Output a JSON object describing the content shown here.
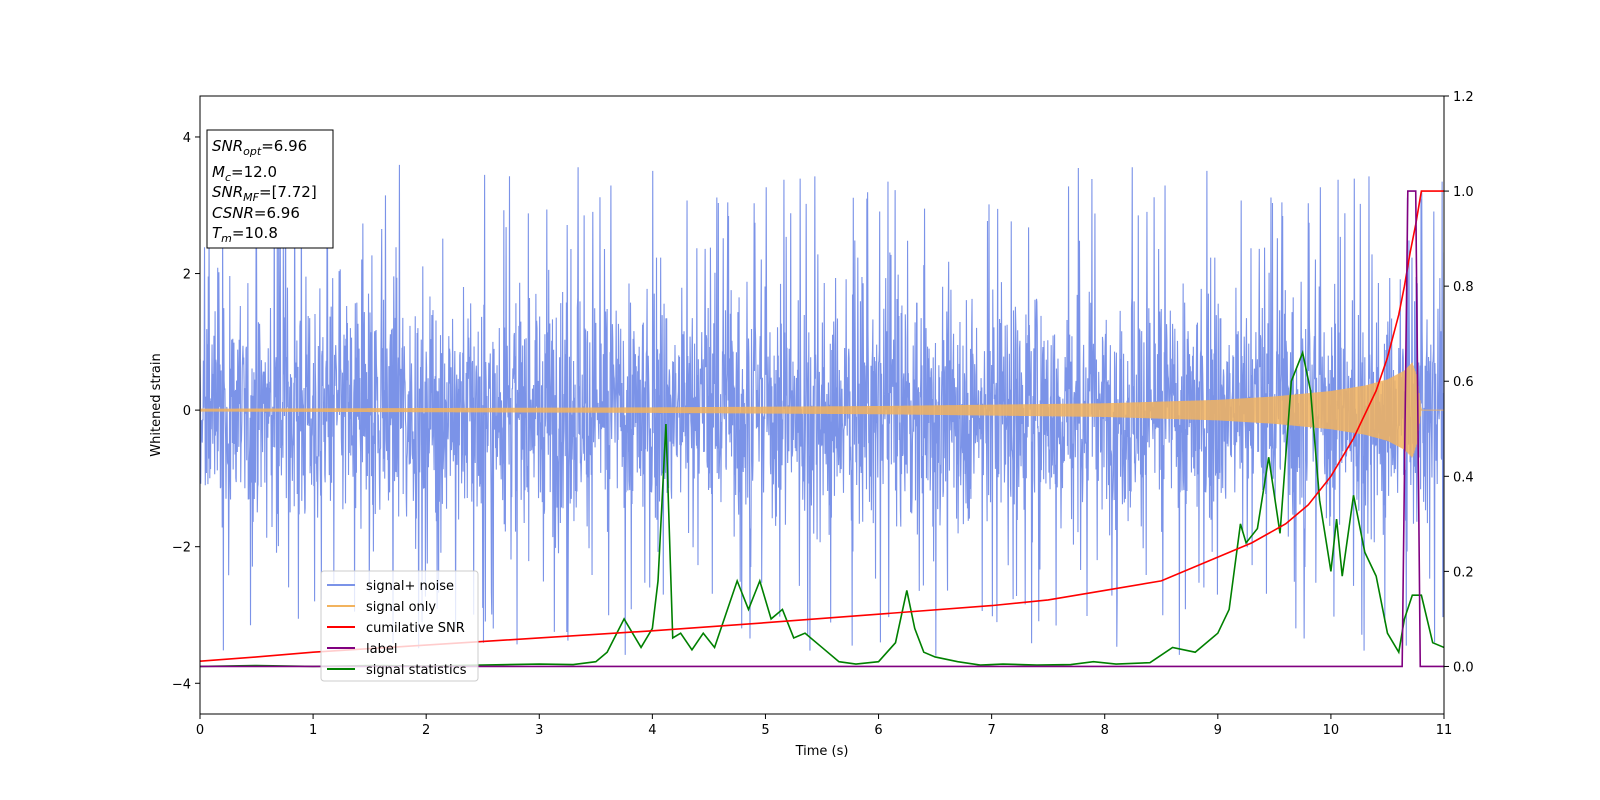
{
  "chart_data": {
    "type": "line",
    "title": "",
    "xlabel": "Time (s)",
    "ylabel": "Whitened strain",
    "xlim": [
      0,
      11
    ],
    "ylim": [
      -4.45,
      4.6
    ],
    "y2lim": [
      -0.1,
      1.2
    ],
    "x_ticks": [
      "0",
      "1",
      "2",
      "3",
      "4",
      "5",
      "6",
      "7",
      "8",
      "9",
      "10",
      "11"
    ],
    "y_ticks": [
      "−4",
      "−2",
      "0",
      "2",
      "4"
    ],
    "y2_ticks": [
      "0.0",
      "0.2",
      "0.4",
      "0.6",
      "0.8",
      "1.0",
      "1.2"
    ],
    "grid": false,
    "legend_position": "lower-left",
    "annotation": {
      "lines": [
        {
          "base": "SNR",
          "sub": "opt",
          "rest": "=6.96"
        },
        {
          "base": "M",
          "sub": "c",
          "rest": "=12.0"
        },
        {
          "base": "SNR",
          "sub": "MF",
          "rest": "=[7.72]"
        },
        {
          "base": "CSNR",
          "sub": "",
          "rest": "=6.96"
        },
        {
          "base": "T",
          "sub": "m",
          "rest": "=10.8"
        }
      ]
    },
    "series": [
      {
        "name": "signal+ noise",
        "axis": "left",
        "color": "#7b93e8",
        "description_values": {
          "noise_band_min": -2.6,
          "noise_band_max": 2.6,
          "peak_max": 4.15,
          "peak_min": -4.05
        }
      },
      {
        "name": "signal only",
        "axis": "left",
        "color": "#f2b35e",
        "envelope": {
          "x": [
            0,
            2,
            4,
            6,
            8,
            9,
            9.5,
            10,
            10.3,
            10.5,
            10.65,
            10.72,
            10.76,
            10.8,
            11
          ],
          "amplitude": [
            0.02,
            0.03,
            0.04,
            0.06,
            0.1,
            0.15,
            0.2,
            0.28,
            0.36,
            0.45,
            0.58,
            0.7,
            0.5,
            0,
            0
          ]
        }
      },
      {
        "name": "cumilative SNR",
        "axis": "right",
        "color": "#ff0000",
        "x": [
          0,
          0.5,
          1,
          2,
          3,
          4,
          5,
          6,
          7,
          7.5,
          8,
          8.5,
          9,
          9.3,
          9.6,
          9.8,
          10,
          10.2,
          10.4,
          10.5,
          10.6,
          10.65,
          10.7,
          10.75,
          10.8,
          11
        ],
        "values": [
          0.011,
          0.02,
          0.03,
          0.045,
          0.06,
          0.075,
          0.092,
          0.11,
          0.128,
          0.14,
          0.16,
          0.18,
          0.23,
          0.26,
          0.3,
          0.34,
          0.4,
          0.48,
          0.58,
          0.65,
          0.74,
          0.8,
          0.87,
          0.93,
          1.0,
          1.0
        ]
      },
      {
        "name": "label",
        "axis": "right",
        "color": "#800080",
        "x": [
          0,
          10.63,
          10.68,
          10.75,
          10.79,
          11
        ],
        "values": [
          0,
          0,
          1,
          1,
          0,
          0
        ]
      },
      {
        "name": "signal statistics",
        "axis": "right",
        "color": "#008000",
        "x": [
          0,
          0.5,
          1,
          1.5,
          2,
          2.5,
          3,
          3.3,
          3.5,
          3.6,
          3.75,
          3.9,
          4.0,
          4.05,
          4.12,
          4.18,
          4.25,
          4.35,
          4.45,
          4.55,
          4.65,
          4.75,
          4.85,
          4.95,
          5.05,
          5.15,
          5.25,
          5.35,
          5.5,
          5.65,
          5.8,
          6.0,
          6.15,
          6.25,
          6.32,
          6.4,
          6.5,
          6.7,
          6.9,
          7.1,
          7.4,
          7.7,
          7.9,
          8.1,
          8.4,
          8.6,
          8.8,
          9.0,
          9.1,
          9.2,
          9.25,
          9.35,
          9.45,
          9.55,
          9.65,
          9.75,
          9.82,
          9.9,
          10.0,
          10.05,
          10.1,
          10.2,
          10.3,
          10.4,
          10.5,
          10.6,
          10.65,
          10.72,
          10.8,
          10.85,
          10.9,
          11.0
        ],
        "values": [
          0.0,
          0.002,
          0.0,
          0.002,
          0.001,
          0.003,
          0.005,
          0.004,
          0.01,
          0.03,
          0.1,
          0.04,
          0.08,
          0.18,
          0.51,
          0.06,
          0.07,
          0.035,
          0.07,
          0.04,
          0.11,
          0.18,
          0.12,
          0.18,
          0.1,
          0.12,
          0.06,
          0.07,
          0.04,
          0.01,
          0.005,
          0.01,
          0.05,
          0.16,
          0.08,
          0.03,
          0.02,
          0.01,
          0.003,
          0.005,
          0.003,
          0.004,
          0.01,
          0.005,
          0.008,
          0.04,
          0.03,
          0.07,
          0.12,
          0.3,
          0.26,
          0.29,
          0.44,
          0.28,
          0.6,
          0.66,
          0.58,
          0.35,
          0.2,
          0.31,
          0.19,
          0.36,
          0.24,
          0.19,
          0.07,
          0.03,
          0.1,
          0.15,
          0.15,
          0.1,
          0.05,
          0.04
        ]
      }
    ]
  }
}
